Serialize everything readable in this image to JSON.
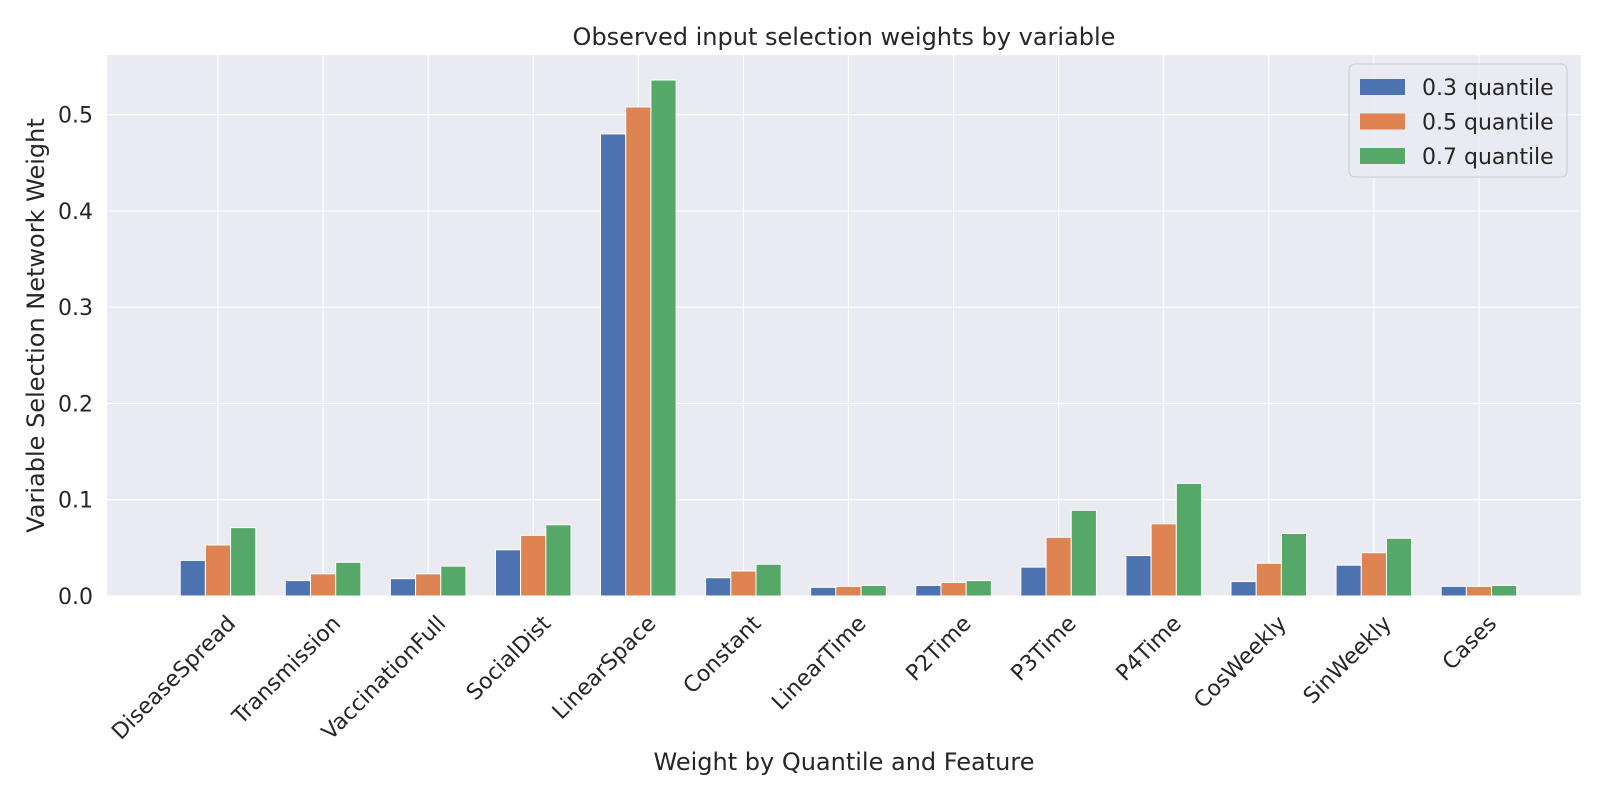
{
  "chart_data": {
    "type": "bar",
    "title": "Observed input selection weights by variable",
    "xlabel": "Weight by Quantile and Feature",
    "ylabel": "Variable Selection Network Weight",
    "ylim": [
      0,
      0.562
    ],
    "yticks": [
      "0.0",
      "0.1",
      "0.2",
      "0.3",
      "0.4",
      "0.5"
    ],
    "categories": [
      "DiseaseSpread",
      "Transmission",
      "VaccinationFull",
      "SocialDist",
      "LinearSpace",
      "Constant",
      "LinearTime",
      "P2Time",
      "P3Time",
      "P4Time",
      "CosWeekly",
      "SinWeekly",
      "Cases"
    ],
    "series": [
      {
        "name": "0.3 quantile",
        "color": "#4c72b0",
        "values": [
          0.037,
          0.016,
          0.018,
          0.048,
          0.48,
          0.019,
          0.009,
          0.011,
          0.03,
          0.042,
          0.015,
          0.032,
          0.01
        ]
      },
      {
        "name": "0.5 quantile",
        "color": "#dd8452",
        "values": [
          0.053,
          0.023,
          0.023,
          0.063,
          0.508,
          0.026,
          0.01,
          0.014,
          0.061,
          0.075,
          0.034,
          0.045,
          0.01
        ]
      },
      {
        "name": "0.7 quantile",
        "color": "#55a868",
        "values": [
          0.071,
          0.035,
          0.031,
          0.074,
          0.536,
          0.033,
          0.011,
          0.016,
          0.089,
          0.117,
          0.065,
          0.06,
          0.011
        ]
      }
    ],
    "grid": true,
    "legend_position": "top-right",
    "background_color": "#eaeaf2",
    "grid_color": "#ffffff"
  }
}
